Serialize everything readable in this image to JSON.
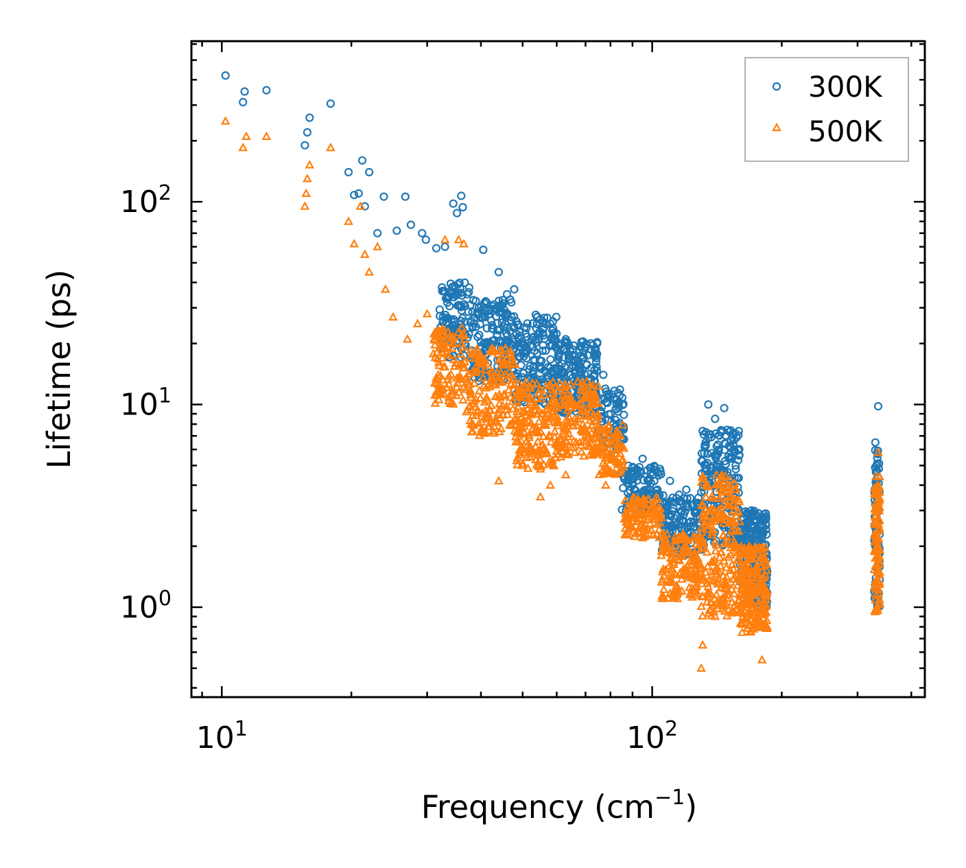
{
  "chart_data": {
    "type": "scatter",
    "x_scale": "log",
    "y_scale": "log",
    "xlabel": "Frequency (cm",
    "xlabel_sup": "−1",
    "xlabel_end": ")",
    "ylabel": "Lifetime (ps)",
    "xlim": [
      8.5,
      430
    ],
    "ylim": [
      0.36,
      620
    ],
    "x_ticks": [
      {
        "value": 10,
        "base": "10",
        "exp": "1"
      },
      {
        "value": 100,
        "base": "10",
        "exp": "2"
      }
    ],
    "y_ticks": [
      {
        "value": 1,
        "base": "10",
        "exp": "0"
      },
      {
        "value": 10,
        "base": "10",
        "exp": "1"
      },
      {
        "value": 100,
        "base": "10",
        "exp": "2"
      }
    ],
    "legend_position": "top-right",
    "series": [
      {
        "name": "300K",
        "marker": "circle",
        "color": "#1f77b4",
        "points": [
          [
            10.2,
            420
          ],
          [
            11.2,
            310
          ],
          [
            11.3,
            350
          ],
          [
            12.7,
            355
          ],
          [
            15.6,
            190
          ],
          [
            15.8,
            220
          ],
          [
            16.0,
            260
          ],
          [
            17.9,
            305
          ],
          [
            19.7,
            140
          ],
          [
            20.3,
            108
          ],
          [
            20.8,
            110
          ],
          [
            21.2,
            160
          ],
          [
            21.5,
            95
          ],
          [
            22.0,
            140
          ],
          [
            23.0,
            70
          ],
          [
            23.8,
            106
          ],
          [
            25.5,
            72
          ],
          [
            26.7,
            106
          ],
          [
            27.5,
            77
          ],
          [
            29.2,
            70
          ],
          [
            29.8,
            65
          ],
          [
            31.5,
            59
          ],
          [
            33.0,
            60
          ],
          [
            34.5,
            98
          ],
          [
            35.2,
            88
          ],
          [
            36.0,
            107
          ],
          [
            36.3,
            94
          ],
          [
            40.5,
            58
          ],
          [
            44.0,
            45
          ],
          [
            46.0,
            35
          ],
          [
            47.8,
            37
          ],
          [
            54.0,
            27
          ],
          [
            58.0,
            25
          ],
          [
            63.0,
            21
          ],
          [
            70.0,
            19
          ],
          [
            77.0,
            14
          ],
          [
            85.0,
            4.6
          ],
          [
            90.0,
            4.3
          ],
          [
            95.0,
            5.4
          ],
          [
            110.0,
            4.2
          ],
          [
            120.0,
            3.8
          ],
          [
            131.0,
            7.4
          ],
          [
            135.0,
            10.0
          ],
          [
            140.0,
            8.5
          ],
          [
            147.0,
            9.6
          ],
          [
            155.0,
            6.0
          ],
          [
            170.0,
            3.0
          ],
          [
            180.0,
            2.2
          ],
          [
            185.0,
            1.5
          ],
          [
            330.0,
            6.5
          ],
          [
            332.0,
            4.0
          ],
          [
            335.0,
            9.8
          ]
        ],
        "clusters": [
          {
            "x": [
              32,
              38
            ],
            "y": [
              17,
              40
            ],
            "n": 110
          },
          {
            "x": [
              38,
              48
            ],
            "y": [
              13,
              33
            ],
            "n": 170
          },
          {
            "x": [
              48,
              60
            ],
            "y": [
              10,
              28
            ],
            "n": 170
          },
          {
            "x": [
              60,
              75
            ],
            "y": [
              9,
              21
            ],
            "n": 190
          },
          {
            "x": [
              75,
              86
            ],
            "y": [
              6,
              12
            ],
            "n": 80
          },
          {
            "x": [
              85,
              105
            ],
            "y": [
              3,
              5
            ],
            "n": 120
          },
          {
            "x": [
              105,
              130
            ],
            "y": [
              1.8,
              3.6
            ],
            "n": 140
          },
          {
            "x": [
              130,
              160
            ],
            "y": [
              2.0,
              7.5
            ],
            "n": 200
          },
          {
            "x": [
              160,
              185
            ],
            "y": [
              1.0,
              3.0
            ],
            "n": 220
          },
          {
            "x": [
              328,
              338
            ],
            "y": [
              1.0,
              6.0
            ],
            "n": 90
          }
        ]
      },
      {
        "name": "500K",
        "marker": "triangle",
        "color": "#ff7f0e",
        "points": [
          [
            10.2,
            250
          ],
          [
            11.2,
            185
          ],
          [
            11.4,
            210
          ],
          [
            12.7,
            210
          ],
          [
            15.6,
            95
          ],
          [
            15.7,
            110
          ],
          [
            15.8,
            130
          ],
          [
            16.0,
            152
          ],
          [
            17.9,
            185
          ],
          [
            19.7,
            80
          ],
          [
            20.3,
            62
          ],
          [
            21.0,
            95
          ],
          [
            21.5,
            55
          ],
          [
            22.0,
            45
          ],
          [
            23.0,
            60
          ],
          [
            24.0,
            37
          ],
          [
            25.0,
            27
          ],
          [
            27.0,
            21
          ],
          [
            28.5,
            25
          ],
          [
            30.0,
            28
          ],
          [
            33.0,
            65
          ],
          [
            35.5,
            65
          ],
          [
            36.5,
            62
          ],
          [
            44.0,
            4.2
          ],
          [
            50.0,
            5.0
          ],
          [
            55.0,
            3.5
          ],
          [
            58.0,
            4.0
          ],
          [
            63.0,
            4.5
          ],
          [
            78.0,
            4.0
          ],
          [
            90.0,
            3.3
          ],
          [
            95.0,
            2.2
          ],
          [
            105.0,
            1.8
          ],
          [
            130.0,
            0.5
          ],
          [
            131.0,
            0.65
          ],
          [
            140.0,
            0.9
          ],
          [
            150.0,
            1.2
          ],
          [
            180.0,
            0.55
          ],
          [
            185.0,
            0.8
          ],
          [
            330.0,
            0.95
          ],
          [
            335.0,
            5.8
          ]
        ],
        "clusters": [
          {
            "x": [
              31,
              37
            ],
            "y": [
              10,
              24
            ],
            "n": 110
          },
          {
            "x": [
              37,
              48
            ],
            "y": [
              7,
              19
            ],
            "n": 170
          },
          {
            "x": [
              48,
              60
            ],
            "y": [
              4.8,
              13
            ],
            "n": 170
          },
          {
            "x": [
              60,
              75
            ],
            "y": [
              5.5,
              13
            ],
            "n": 170
          },
          {
            "x": [
              75,
              86
            ],
            "y": [
              4.5,
              8
            ],
            "n": 80
          },
          {
            "x": [
              86,
              105
            ],
            "y": [
              2.2,
              3.5
            ],
            "n": 110
          },
          {
            "x": [
              105,
              130
            ],
            "y": [
              1.1,
              2.3
            ],
            "n": 150
          },
          {
            "x": [
              130,
              160
            ],
            "y": [
              0.9,
              4.5
            ],
            "n": 220
          },
          {
            "x": [
              160,
              185
            ],
            "y": [
              0.75,
              2.0
            ],
            "n": 220
          },
          {
            "x": [
              328,
              338
            ],
            "y": [
              0.95,
              4.5
            ],
            "n": 90
          }
        ]
      }
    ]
  }
}
